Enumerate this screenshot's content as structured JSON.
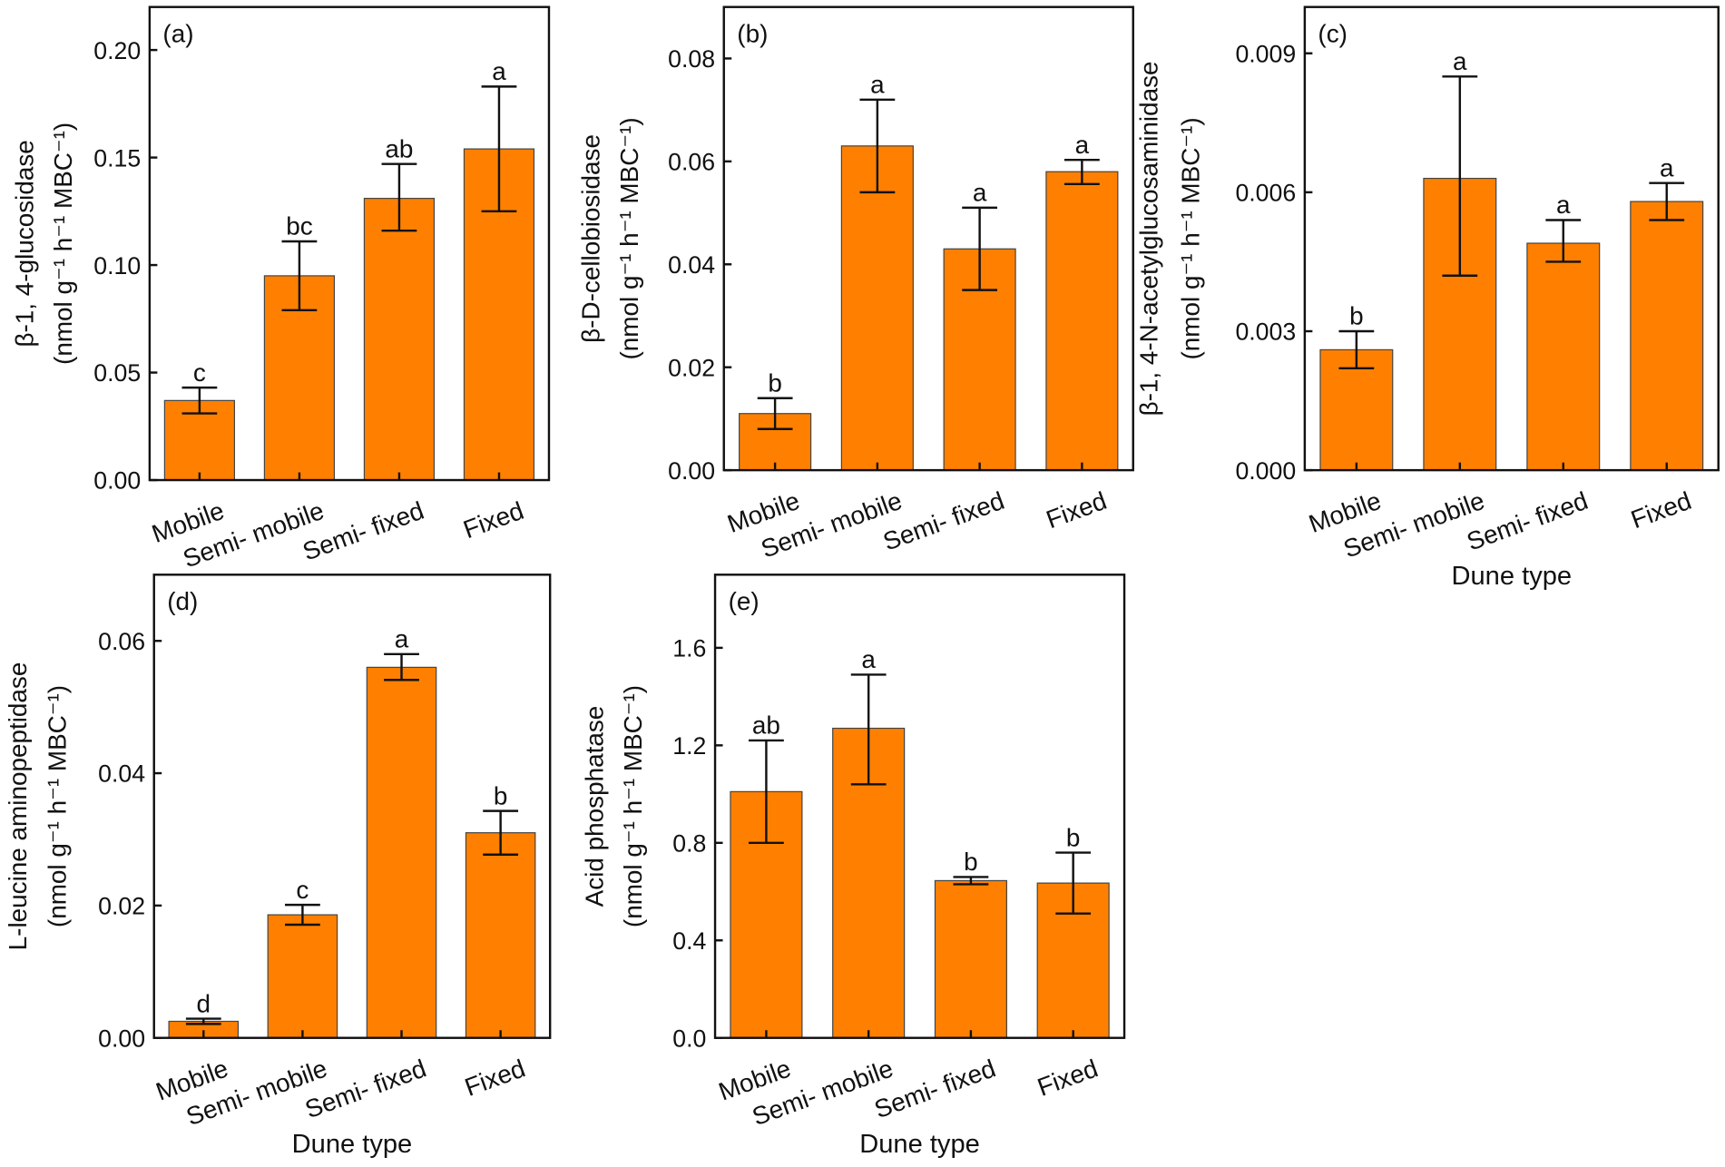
{
  "colors": {
    "bar": "#FF8000",
    "bar_edge": "#444444",
    "axis": "#111111"
  },
  "chart_data": [
    {
      "type": "bar",
      "panel": "(a)",
      "title_line": "β-1, 4-glucosidase",
      "unit_line": "(nmol g⁻¹ h⁻¹ MBC⁻¹)",
      "xlabel": "",
      "categories": [
        "Mobile",
        "Semi- mobile",
        "Semi- fixed",
        "Fixed"
      ],
      "values": [
        0.037,
        0.095,
        0.131,
        0.154
      ],
      "err_low": [
        0.031,
        0.079,
        0.116,
        0.125
      ],
      "err_high": [
        0.043,
        0.111,
        0.147,
        0.183
      ],
      "letters": [
        "c",
        "bc",
        "ab",
        "a"
      ],
      "ylim": [
        0,
        0.22
      ],
      "yticks": [
        0,
        0.05,
        0.1,
        0.15,
        0.2
      ],
      "ytick_labels": [
        "0.00",
        "0.05",
        "0.10",
        "0.15",
        "0.20"
      ]
    },
    {
      "type": "bar",
      "panel": "(b)",
      "title_line": "β-D-cellobiosidase",
      "unit_line": "(nmol g⁻¹ h⁻¹ MBC⁻¹)",
      "xlabel": "",
      "categories": [
        "Mobile",
        "Semi- mobile",
        "Semi- fixed",
        "Fixed"
      ],
      "values": [
        0.011,
        0.063,
        0.043,
        0.058
      ],
      "err_low": [
        0.008,
        0.054,
        0.035,
        0.0556
      ],
      "err_high": [
        0.014,
        0.072,
        0.051,
        0.0603
      ],
      "letters": [
        "b",
        "a",
        "a",
        "a"
      ],
      "ylim": [
        0,
        0.09
      ],
      "yticks": [
        0,
        0.02,
        0.04,
        0.06,
        0.08
      ],
      "ytick_labels": [
        "0.00",
        "0.02",
        "0.04",
        "0.06",
        "0.08"
      ]
    },
    {
      "type": "bar",
      "panel": "(c)",
      "title_line": "β-1, 4-N-acetylglucosaminidase",
      "unit_line": "(nmol g⁻¹ h⁻¹ MBC⁻¹)",
      "xlabel": "Dune type",
      "categories": [
        "Mobile",
        "Semi- mobile",
        "Semi- fixed",
        "Fixed"
      ],
      "values": [
        0.0026,
        0.0063,
        0.0049,
        0.0058
      ],
      "err_low": [
        0.0022,
        0.0042,
        0.0045,
        0.0054
      ],
      "err_high": [
        0.003,
        0.0085,
        0.0054,
        0.0062
      ],
      "letters": [
        "b",
        "a",
        "a",
        "a"
      ],
      "ylim": [
        0,
        0.01
      ],
      "yticks": [
        0,
        0.003,
        0.006,
        0.009
      ],
      "ytick_labels": [
        "0.000",
        "0.003",
        "0.006",
        "0.009"
      ]
    },
    {
      "type": "bar",
      "panel": "(d)",
      "title_line": "L-leucine aminopeptidase",
      "unit_line": "(nmol g⁻¹ h⁻¹ MBC⁻¹)",
      "xlabel": "Dune type",
      "categories": [
        "Mobile",
        "Semi- mobile",
        "Semi- fixed",
        "Fixed"
      ],
      "values": [
        0.0025,
        0.0186,
        0.056,
        0.031
      ],
      "err_low": [
        0.0021,
        0.0171,
        0.0541,
        0.0277
      ],
      "err_high": [
        0.0029,
        0.0201,
        0.058,
        0.0343
      ],
      "letters": [
        "d",
        "c",
        "a",
        "b"
      ],
      "ylim": [
        0,
        0.07
      ],
      "yticks": [
        0,
        0.02,
        0.04,
        0.06
      ],
      "ytick_labels": [
        "0.00",
        "0.02",
        "0.04",
        "0.06"
      ]
    },
    {
      "type": "bar",
      "panel": "(e)",
      "title_line": "Acid phosphatase",
      "unit_line": "(nmol g⁻¹ h⁻¹ MBC⁻¹)",
      "xlabel": "Dune type",
      "categories": [
        "Mobile",
        "Semi- mobile",
        "Semi- fixed",
        "Fixed"
      ],
      "values": [
        1.01,
        1.27,
        0.645,
        0.635
      ],
      "err_low": [
        0.8,
        1.04,
        0.63,
        0.51
      ],
      "err_high": [
        1.22,
        1.49,
        0.66,
        0.76
      ],
      "letters": [
        "ab",
        "a",
        "b",
        "b"
      ],
      "ylim": [
        0,
        1.9
      ],
      "yticks": [
        0,
        0.4,
        0.8,
        1.2,
        1.6
      ],
      "ytick_labels": [
        "0.0",
        "0.4",
        "0.8",
        "1.2",
        "1.6"
      ]
    }
  ]
}
